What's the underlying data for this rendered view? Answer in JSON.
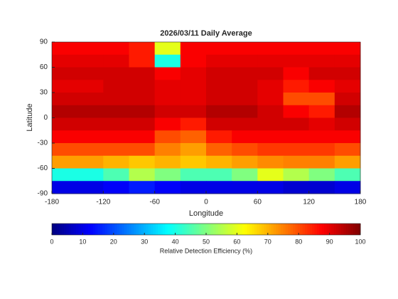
{
  "chart_data": {
    "type": "heatmap",
    "title": "2026/03/11 Daily Average",
    "xlabel": "Longitude",
    "ylabel": "Latitude",
    "x": [
      -165,
      -135,
      -105,
      -75,
      -45,
      -15,
      15,
      45,
      75,
      105,
      135,
      165
    ],
    "y": [
      82.5,
      67.5,
      52.5,
      37.5,
      22.5,
      7.5,
      -7.5,
      -22.5,
      -37.5,
      -52.5,
      -67.5,
      -82.5
    ],
    "z": [
      [
        88,
        88,
        88,
        85,
        60,
        88,
        88,
        88,
        88,
        88,
        88,
        88
      ],
      [
        90,
        90,
        90,
        85,
        40,
        88,
        90,
        90,
        90,
        90,
        90,
        90
      ],
      [
        92,
        92,
        92,
        92,
        88,
        90,
        92,
        92,
        92,
        88,
        92,
        92
      ],
      [
        90,
        90,
        92,
        92,
        90,
        90,
        92,
        92,
        90,
        85,
        88,
        90
      ],
      [
        92,
        92,
        92,
        92,
        90,
        90,
        92,
        92,
        90,
        80,
        80,
        92
      ],
      [
        95,
        95,
        95,
        95,
        92,
        92,
        95,
        95,
        92,
        88,
        85,
        95
      ],
      [
        92,
        92,
        92,
        92,
        88,
        85,
        92,
        92,
        92,
        92,
        90,
        92
      ],
      [
        88,
        88,
        88,
        88,
        80,
        78,
        85,
        88,
        88,
        88,
        88,
        88
      ],
      [
        80,
        80,
        80,
        80,
        75,
        72,
        78,
        80,
        82,
        82,
        82,
        80
      ],
      [
        72,
        72,
        70,
        68,
        70,
        68,
        70,
        72,
        74,
        75,
        75,
        72
      ],
      [
        40,
        40,
        45,
        55,
        50,
        45,
        45,
        50,
        60,
        55,
        50,
        45
      ],
      [
        10,
        10,
        12,
        15,
        12,
        10,
        10,
        10,
        10,
        8,
        8,
        10
      ]
    ],
    "colormap": "jet",
    "xlim": [
      -180,
      180
    ],
    "ylim": [
      -90,
      90
    ],
    "xticks": [
      -180,
      -120,
      -60,
      0,
      60,
      120,
      180
    ],
    "yticks": [
      90,
      60,
      30,
      0,
      -30,
      -60,
      -90
    ],
    "clim": [
      0,
      100
    ],
    "cticks": [
      0,
      10,
      20,
      30,
      40,
      50,
      60,
      70,
      80,
      90,
      100
    ],
    "clabel": "Relative Detection Efficiency (%)"
  }
}
